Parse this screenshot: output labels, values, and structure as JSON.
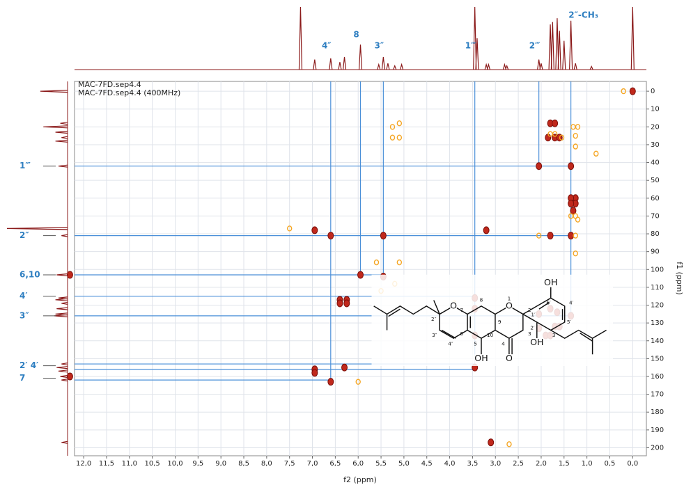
{
  "chart_data": {
    "type": "scatter",
    "experiment_labels": [
      "MAC-7FD.sep4.4",
      "MAC-7FD.sep4.4 (400MHz)"
    ],
    "x_label": "f2 (ppm)",
    "y_label": "f1 (ppm)",
    "xlim": [
      12.2,
      -0.3
    ],
    "ylim": [
      -5.5,
      204.5
    ],
    "xticks": [
      {
        "value": 12,
        "label": "12,0"
      },
      {
        "value": 11.5,
        "label": "11,5"
      },
      {
        "value": 11,
        "label": "11,0"
      },
      {
        "value": 10.5,
        "label": "10,5"
      },
      {
        "value": 10,
        "label": "10,0"
      },
      {
        "value": 9.5,
        "label": "9,5"
      },
      {
        "value": 9,
        "label": "9,0"
      },
      {
        "value": 8.5,
        "label": "8,5"
      },
      {
        "value": 8,
        "label": "8,0"
      },
      {
        "value": 7.5,
        "label": "7,5"
      },
      {
        "value": 7,
        "label": "7,0"
      },
      {
        "value": 6.5,
        "label": "6,5"
      },
      {
        "value": 6,
        "label": "6,0"
      },
      {
        "value": 5.5,
        "label": "5,5"
      },
      {
        "value": 5,
        "label": "5,0"
      },
      {
        "value": 4.5,
        "label": "4,5"
      },
      {
        "value": 4,
        "label": "4,0"
      },
      {
        "value": 3.5,
        "label": "3,5"
      },
      {
        "value": 3,
        "label": "3,0"
      },
      {
        "value": 2.5,
        "label": "2,5"
      },
      {
        "value": 2,
        "label": "2,0"
      },
      {
        "value": 1.5,
        "label": "1,5"
      },
      {
        "value": 1,
        "label": "1,0"
      },
      {
        "value": 0.5,
        "label": "0,5"
      },
      {
        "value": 0,
        "label": "0,0"
      }
    ],
    "yticks": [
      0,
      10,
      20,
      30,
      40,
      50,
      60,
      70,
      80,
      90,
      100,
      110,
      120,
      130,
      140,
      150,
      160,
      170,
      180,
      190,
      200
    ],
    "grid": true,
    "series": [
      {
        "color": "#c0281c",
        "x": [
          0.0,
          1.8,
          1.7,
          1.85,
          1.7,
          1.6,
          2.05,
          1.35,
          1.25,
          1.35,
          1.25,
          1.35,
          1.3,
          6.95,
          3.2,
          6.6,
          5.45,
          1.8,
          1.35,
          5.95,
          5.45,
          12.3,
          6.4,
          6.25,
          6.4,
          6.25,
          3.45,
          3.45,
          2.05,
          1.8,
          1.65,
          1.35,
          2.05,
          1.7,
          1.6,
          1.9,
          1.8,
          3.45,
          6.95,
          6.95,
          6.3,
          3.45,
          6.6,
          12.3,
          3.1
        ],
        "values": [
          0,
          18,
          18,
          26,
          26,
          26,
          42,
          42,
          60,
          60,
          63,
          63,
          67,
          78,
          78,
          81,
          81,
          81,
          81,
          103,
          104,
          103,
          117,
          117,
          119,
          119,
          116,
          122,
          125,
          122,
          124,
          126,
          133,
          132,
          132,
          137,
          137,
          137,
          156,
          158,
          155,
          155,
          163,
          160,
          197
        ]
      },
      {
        "color": "#f5a623",
        "x": [
          5.1,
          5.25,
          5.1,
          5.25,
          1.3,
          1.2,
          1.8,
          1.7,
          1.55,
          1.25,
          1.25,
          0.8,
          1.25,
          1.35,
          1.2,
          7.5,
          2.05,
          1.25,
          1.25,
          5.6,
          5.1,
          5.2,
          3.9,
          5.5,
          6.0,
          2.7,
          0.2
        ],
        "values": [
          18,
          20,
          26,
          26,
          20,
          20,
          24,
          24,
          26,
          25,
          31,
          35,
          70,
          70,
          72,
          77,
          81,
          81,
          91,
          96,
          96,
          108,
          119,
          112,
          163,
          198,
          0
        ]
      }
    ],
    "f2_projection": {
      "color": "#8b1a1a",
      "x": [
        7.26,
        6.95,
        6.6,
        6.4,
        6.3,
        5.95,
        5.55,
        5.45,
        5.35,
        5.2,
        5.05,
        3.45,
        3.4,
        3.2,
        3.15,
        2.8,
        2.75,
        2.05,
        2.0,
        1.8,
        1.75,
        1.65,
        1.6,
        1.5,
        1.35,
        1.25,
        0.9,
        0.0
      ],
      "values": [
        100,
        16,
        18,
        12,
        20,
        40,
        8,
        20,
        10,
        6,
        8,
        100,
        50,
        8,
        8,
        8,
        6,
        16,
        10,
        72,
        76,
        82,
        62,
        46,
        78,
        10,
        5,
        100
      ]
    },
    "f1_projection": {
      "color": "#8b1a1a",
      "x": [
        0,
        18,
        20,
        23,
        26,
        28,
        42,
        77,
        81,
        103,
        116,
        117,
        119,
        122,
        125,
        126,
        153,
        155,
        157,
        160,
        162,
        197
      ],
      "values": [
        45,
        12,
        40,
        20,
        10,
        20,
        15,
        100,
        10,
        18,
        15,
        20,
        10,
        18,
        20,
        22,
        10,
        18,
        15,
        12,
        10,
        10
      ]
    },
    "guide_lines": {
      "color": "#4a8fd8",
      "horizontal": [
        {
          "y": 42,
          "x_end": 1.35
        },
        {
          "y": 81,
          "x_end": 1.35
        },
        {
          "y": 103,
          "x_end": 5.45
        },
        {
          "y": 115,
          "x_end": 3.45
        },
        {
          "y": 126,
          "x_end": 1.35
        },
        {
          "y": 153,
          "x_end": 3.45
        },
        {
          "y": 156,
          "x_end": 3.45
        },
        {
          "y": 162,
          "x_end": 6.6
        }
      ],
      "vertical": [
        {
          "x": 6.6,
          "y_end": 162
        },
        {
          "x": 5.95,
          "y_end": 103
        },
        {
          "x": 5.45,
          "y_end": 103
        },
        {
          "x": 3.45,
          "y_end": 156
        },
        {
          "x": 2.05,
          "y_end": 42
        },
        {
          "x": 1.35,
          "y_end": 126
        }
      ]
    },
    "top_annotations": [
      {
        "text": "4″",
        "x": 6.6
      },
      {
        "text": "8",
        "x": 5.95
      },
      {
        "text": "3″",
        "x": 5.45
      },
      {
        "text": "1‴",
        "x": 3.45
      },
      {
        "text": "2‴",
        "x": 2.05
      },
      {
        "text": "2″-CH₃",
        "x": 1.35
      }
    ],
    "left_annotations": [
      {
        "text": "1‴",
        "y": 42
      },
      {
        "text": "2″",
        "y": 81
      },
      {
        "text": "6,10",
        "y": 103
      },
      {
        "text": "4′",
        "y": 115
      },
      {
        "text": "3″",
        "y": 126
      },
      {
        "text": "2′ 4′",
        "y": 154
      },
      {
        "text": "7",
        "y": 161
      }
    ],
    "structure_labels": [
      "O",
      "O",
      "OH",
      "O",
      "OH",
      "OH",
      "1",
      "2",
      "3",
      "4",
      "5",
      "6",
      "7",
      "8",
      "9",
      "10",
      "1′",
      "2′",
      "3′",
      "4′",
      "5′",
      "6′",
      "2″",
      "3″",
      "4″"
    ]
  }
}
